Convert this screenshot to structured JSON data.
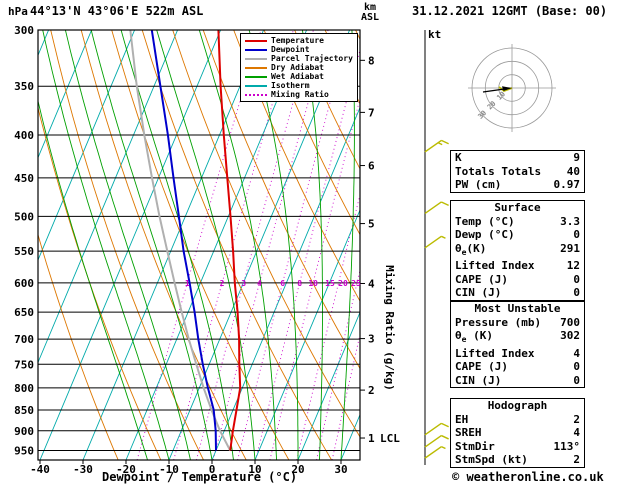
{
  "header": {
    "pressure_unit": "hPa",
    "station": "44°13'N 43°06'E 522m ASL",
    "datetime": "31.12.2021 12GMT (Base: 00)",
    "altitude_unit_top": "km",
    "altitude_unit_bottom": "ASL",
    "barb_unit": "kt"
  },
  "legend": {
    "items": [
      {
        "label": "Temperature",
        "color": "#dd0000",
        "dash": "solid"
      },
      {
        "label": "Dewpoint",
        "color": "#0000cc",
        "dash": "solid"
      },
      {
        "label": "Parcel Trajectory",
        "color": "#b0b0b0",
        "dash": "solid"
      },
      {
        "label": "Dry Adiabat",
        "color": "#dd7700",
        "dash": "solid"
      },
      {
        "label": "Wet Adiabat",
        "color": "#00a000",
        "dash": "solid"
      },
      {
        "label": "Isotherm",
        "color": "#00aaaa",
        "dash": "solid"
      },
      {
        "label": "Mixing Ratio",
        "color": "#cc00cc",
        "dash": "dotted"
      }
    ]
  },
  "axes": {
    "pressure_ticks": [
      300,
      350,
      400,
      450,
      500,
      550,
      600,
      650,
      700,
      750,
      800,
      850,
      900,
      950
    ],
    "temp_ticks": [
      -40,
      -30,
      -20,
      -10,
      0,
      10,
      20,
      30
    ],
    "km_ticks": [
      1,
      2,
      3,
      4,
      5,
      6,
      7,
      8
    ],
    "lcl_label": "LCL",
    "mixing_ratio_axis_label": "Mixing Ratio (g/kg)",
    "mixing_ratio_values": [
      1,
      2,
      3,
      4,
      6,
      8,
      10,
      15,
      20,
      25
    ]
  },
  "chart_data": {
    "type": "line",
    "title": "44°13'N 43°06'E 522m ASL",
    "xlabel": "Dewpoint / Temperature (°C)",
    "ylabel": "hPa",
    "x_range": [
      -40,
      35
    ],
    "pressure_range_hPa": [
      975,
      300
    ],
    "pressure_levels_hPa": [
      950,
      900,
      850,
      800,
      750,
      700,
      650,
      600,
      550,
      500,
      450,
      400,
      350,
      300
    ],
    "series": [
      {
        "name": "Temperature",
        "color": "#dd0000",
        "values_c": [
          3.3,
          2,
          0.8,
          -0.5,
          -3,
          -5.5,
          -8.5,
          -12,
          -15.5,
          -19.5,
          -24,
          -29,
          -34.5,
          -40.5
        ]
      },
      {
        "name": "Dewpoint",
        "color": "#0000cc",
        "values_c": [
          0,
          -2,
          -4.5,
          -8,
          -11.5,
          -15,
          -18.5,
          -22.5,
          -27,
          -31.5,
          -36.5,
          -42,
          -48.5,
          -56
        ]
      },
      {
        "name": "Parcel Trajectory",
        "color": "#b0b0b0",
        "values_c": [
          3.3,
          -1,
          -5,
          -9,
          -13,
          -17.2,
          -21.5,
          -26,
          -30.8,
          -36,
          -41.5,
          -47.5,
          -54,
          -61
        ]
      }
    ],
    "wind_barbs": [
      {
        "pressure_hPa": 419,
        "speed_kt": 15
      },
      {
        "pressure_hPa": 496,
        "speed_kt": 10
      },
      {
        "pressure_hPa": 545,
        "speed_kt": 5
      },
      {
        "pressure_hPa": 910,
        "speed_kt": 10
      },
      {
        "pressure_hPa": 941,
        "speed_kt": 10
      },
      {
        "pressure_hPa": 970,
        "speed_kt": 5
      }
    ]
  },
  "hodograph": {
    "unit": "kt",
    "ring_labels_kt": [
      10,
      20,
      30
    ],
    "storm_dir": "113°",
    "storm_speed_kt": "2"
  },
  "stats": {
    "groups": [
      {
        "title": null,
        "rows": [
          [
            "K",
            "9"
          ],
          [
            "Totals Totals",
            "40"
          ],
          [
            "PW (cm)",
            "0.97"
          ]
        ]
      },
      {
        "title": "Surface",
        "rows": [
          [
            "Temp (°C)",
            "3.3"
          ],
          [
            "Dewp (°C)",
            "0"
          ],
          [
            "θe(K)",
            "291"
          ],
          [
            "Lifted Index",
            "12"
          ],
          [
            "CAPE (J)",
            "0"
          ],
          [
            "CIN (J)",
            "0"
          ]
        ]
      },
      {
        "title": "Most Unstable",
        "rows": [
          [
            "Pressure (mb)",
            "700"
          ],
          [
            "θe (K)",
            "302"
          ],
          [
            "Lifted Index",
            "4"
          ],
          [
            "CAPE (J)",
            "0"
          ],
          [
            "CIN (J)",
            "0"
          ]
        ]
      },
      {
        "title": "Hodograph",
        "rows": [
          [
            "EH",
            "2"
          ],
          [
            "SREH",
            "4"
          ],
          [
            "StmDir",
            "113°"
          ],
          [
            "StmSpd (kt)",
            "2"
          ]
        ]
      }
    ]
  },
  "footer": {
    "axis_title": "Dewpoint / Temperature (°C)",
    "copyright": "© weatheronline.co.uk"
  }
}
